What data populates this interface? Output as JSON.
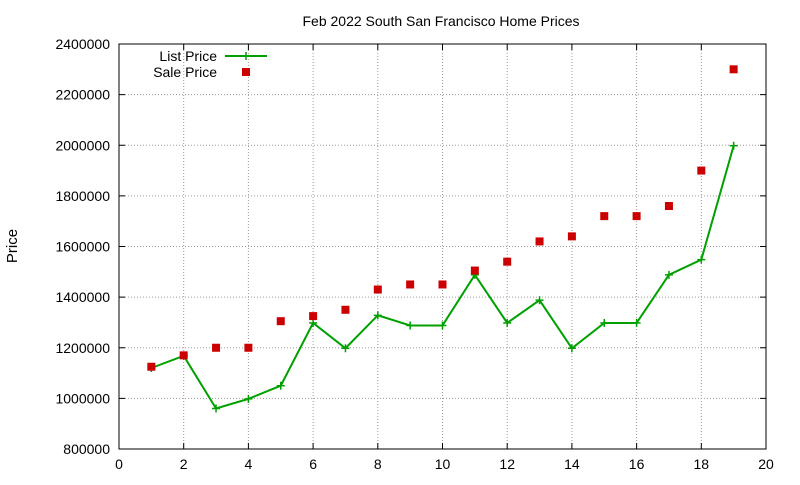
{
  "chart_data": {
    "type": "line",
    "title": "Feb 2022 South San Francisco Home Prices",
    "xlabel": "",
    "ylabel": "Price",
    "xlim": [
      0,
      20
    ],
    "ylim": [
      800000,
      2400000
    ],
    "x_ticks": [
      0,
      2,
      4,
      6,
      8,
      10,
      12,
      14,
      16,
      18,
      20
    ],
    "y_ticks": [
      800000,
      1000000,
      1200000,
      1400000,
      1600000,
      1800000,
      2000000,
      2200000,
      2400000
    ],
    "grid": true,
    "legend_position": "top-left",
    "series": [
      {
        "name": "List Price",
        "style": "line+points",
        "marker": "plus",
        "color": "#00a000",
        "x": [
          1,
          2,
          3,
          4,
          5,
          6,
          7,
          8,
          9,
          10,
          11,
          12,
          13,
          14,
          15,
          16,
          17,
          18,
          19
        ],
        "values": [
          1120000,
          1168000,
          960000,
          998000,
          1050000,
          1298000,
          1198000,
          1328000,
          1288000,
          1288000,
          1488000,
          1298000,
          1388000,
          1198000,
          1298000,
          1298000,
          1488000,
          1548000,
          1998000
        ]
      },
      {
        "name": "Sale Price",
        "style": "points",
        "marker": "square",
        "color": "#cc0000",
        "x": [
          1,
          2,
          3,
          4,
          5,
          6,
          7,
          8,
          9,
          10,
          11,
          12,
          13,
          14,
          15,
          16,
          17,
          18,
          19
        ],
        "values": [
          1125000,
          1170000,
          1200000,
          1200000,
          1305000,
          1325000,
          1350000,
          1430000,
          1450000,
          1450000,
          1505000,
          1540000,
          1620000,
          1640000,
          1720000,
          1720000,
          1760000,
          1900000,
          2300000
        ]
      }
    ]
  }
}
